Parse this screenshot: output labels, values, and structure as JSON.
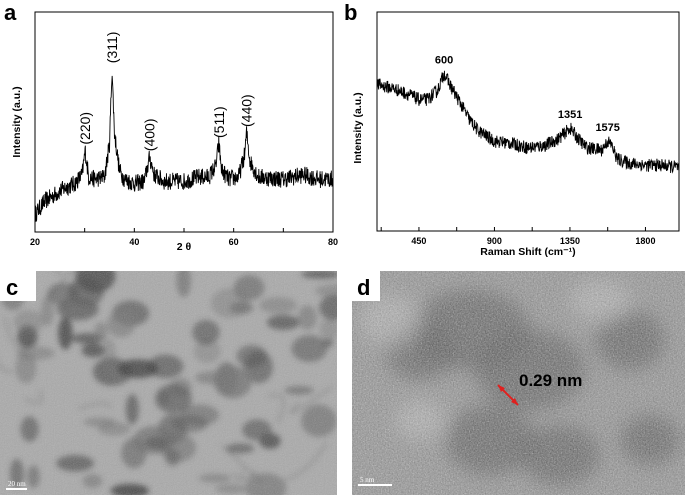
{
  "chart_data": [
    {
      "panel": "a",
      "type": "line",
      "xlabel": "2 θ",
      "ylabel": "Intensity (a.u.)",
      "xlim": [
        20,
        80
      ],
      "x_ticks": [
        20,
        30,
        40,
        50,
        60,
        70,
        80
      ],
      "x_tick_labels": [
        "20",
        "40",
        "60",
        "80"
      ],
      "ylim": [
        0,
        100
      ],
      "y_ticks_shown": false,
      "grid": false,
      "series": [
        {
          "color": "#000000",
          "points": [
            [
              20,
              8
            ],
            [
              22,
              14
            ],
            [
              24,
              17
            ],
            [
              26,
              20
            ],
            [
              28,
              22
            ],
            [
              29.5,
              26
            ],
            [
              30.1,
              37
            ],
            [
              30.8,
              25
            ],
            [
              32,
              24
            ],
            [
              34,
              25
            ],
            [
              35,
              40
            ],
            [
              35.5,
              74
            ],
            [
              36,
              45
            ],
            [
              37,
              28
            ],
            [
              38,
              24
            ],
            [
              40,
              22
            ],
            [
              42,
              23
            ],
            [
              43.1,
              34
            ],
            [
              44,
              26
            ],
            [
              46,
              23
            ],
            [
              50,
              23
            ],
            [
              53,
              25
            ],
            [
              55,
              25
            ],
            [
              56.4,
              30
            ],
            [
              57,
              40
            ],
            [
              57.6,
              28
            ],
            [
              59,
              24
            ],
            [
              61,
              25
            ],
            [
              62.2,
              35
            ],
            [
              62.6,
              45
            ],
            [
              63.3,
              32
            ],
            [
              65,
              25
            ],
            [
              70,
              24
            ],
            [
              74,
              26
            ],
            [
              77,
              24
            ],
            [
              80,
              24
            ]
          ]
        }
      ],
      "annotations": [
        {
          "text": "(220)",
          "x": 30.1,
          "y": 37
        },
        {
          "text": "(311)",
          "x": 35.5,
          "y": 74
        },
        {
          "text": "(400)",
          "x": 43.1,
          "y": 34
        },
        {
          "text": "(511)",
          "x": 57.0,
          "y": 40
        },
        {
          "text": "(440)",
          "x": 62.6,
          "y": 45
        }
      ]
    },
    {
      "panel": "b",
      "type": "line",
      "xlabel": "Raman Shift (cm⁻¹)",
      "ylabel": "Intensity (a.u.)",
      "xlim": [
        200,
        2000
      ],
      "x_ticks": [
        225,
        450,
        675,
        900,
        1125,
        1350,
        1575,
        1800
      ],
      "x_tick_labels": [
        "450",
        "900",
        "1350",
        "1800"
      ],
      "ylim": [
        0,
        100
      ],
      "y_ticks_shown": false,
      "grid": false,
      "series": [
        {
          "color": "#000000",
          "points": [
            [
              200,
              67
            ],
            [
              300,
              65
            ],
            [
              400,
              62
            ],
            [
              450,
              60
            ],
            [
              500,
              60
            ],
            [
              560,
              64
            ],
            [
              600,
              72
            ],
            [
              640,
              66
            ],
            [
              700,
              58
            ],
            [
              750,
              51
            ],
            [
              800,
              46
            ],
            [
              900,
              41
            ],
            [
              1000,
              40
            ],
            [
              1100,
              38
            ],
            [
              1200,
              39
            ],
            [
              1280,
              42
            ],
            [
              1351,
              47
            ],
            [
              1400,
              42
            ],
            [
              1450,
              38
            ],
            [
              1540,
              37
            ],
            [
              1575,
              41
            ],
            [
              1600,
              39
            ],
            [
              1630,
              33
            ],
            [
              1700,
              31
            ],
            [
              1800,
              30
            ],
            [
              1900,
              30
            ],
            [
              2000,
              29
            ]
          ]
        }
      ],
      "annotations": [
        {
          "text": "600",
          "x": 600,
          "y": 72
        },
        {
          "text": "1351",
          "x": 1351,
          "y": 47
        },
        {
          "text": "1575",
          "x": 1575,
          "y": 41
        }
      ]
    }
  ],
  "panels": {
    "a": {
      "letter": "a"
    },
    "b": {
      "letter": "b"
    },
    "c": {
      "letter": "c",
      "scale_bar": "20 nm"
    },
    "d": {
      "letter": "d",
      "scale_bar": "5 nm",
      "annotation": "0.29 nm",
      "arrow_color": "#e0201e"
    }
  }
}
